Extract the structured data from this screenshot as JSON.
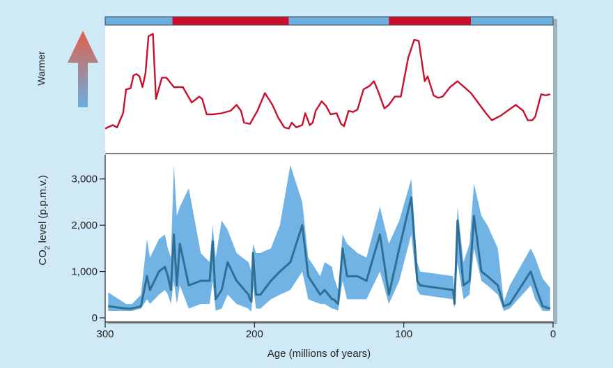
{
  "colors": {
    "background": "#cfe9f6",
    "warm_band": "#c8102e",
    "cool_band": "#6aaedd",
    "temperature_line": "#c8102e",
    "co2_line": "#2f6f96",
    "co2_range": "#71b3e4",
    "arrow_top": "#e0604a",
    "arrow_bottom": "#6aaedd"
  },
  "chart_data": {
    "type": "line",
    "xlabel": "Age (millions of years)",
    "xlim": [
      300,
      0
    ],
    "x_ticks": [
      300,
      200,
      100,
      0
    ],
    "climate_bands": [
      {
        "from": 300,
        "to": 255,
        "state": "cool"
      },
      {
        "from": 255,
        "to": 177,
        "state": "warm"
      },
      {
        "from": 177,
        "to": 110,
        "state": "cool"
      },
      {
        "from": 110,
        "to": 55,
        "state": "warm"
      },
      {
        "from": 55,
        "to": 0,
        "state": "cool"
      }
    ],
    "temperature_panel": {
      "ylabel": "Warmer",
      "ylim": [
        0,
        100
      ],
      "series": [
        {
          "values": [
            [
              300,
              15
            ],
            [
              295,
              18
            ],
            [
              292,
              16
            ],
            [
              288,
              28
            ],
            [
              286,
              48
            ],
            [
              283,
              49
            ],
            [
              281,
              60
            ],
            [
              279,
              61
            ],
            [
              277,
              59
            ],
            [
              275,
              50
            ],
            [
              273,
              62
            ],
            [
              271,
              93
            ],
            [
              268,
              95
            ],
            [
              266,
              40
            ],
            [
              262,
              58
            ],
            [
              259,
              58
            ],
            [
              254,
              50
            ],
            [
              250,
              50
            ],
            [
              248,
              50
            ],
            [
              242,
              37
            ],
            [
              237,
              42
            ],
            [
              235,
              40
            ],
            [
              232,
              27
            ],
            [
              228,
              27
            ],
            [
              222,
              28
            ],
            [
              216,
              30
            ],
            [
              212,
              35
            ],
            [
              209,
              30
            ],
            [
              207,
              20
            ],
            [
              203,
              19
            ],
            [
              198,
              30
            ],
            [
              193,
              45
            ],
            [
              188,
              35
            ],
            [
              184,
              24
            ],
            [
              180,
              16
            ],
            [
              177,
              15
            ],
            [
              175,
              20
            ],
            [
              172,
              16
            ],
            [
              168,
              18
            ],
            [
              166,
              28
            ],
            [
              163,
              18
            ],
            [
              161,
              20
            ],
            [
              159,
              30
            ],
            [
              155,
              38
            ],
            [
              152,
              34
            ],
            [
              149,
              27
            ],
            [
              145,
              28
            ],
            [
              142,
              19
            ],
            [
              140,
              17
            ],
            [
              137,
              30
            ],
            [
              134,
              29
            ],
            [
              131,
              31
            ],
            [
              127,
              48
            ],
            [
              123,
              51
            ],
            [
              120,
              55
            ],
            [
              117,
              46
            ],
            [
              113,
              32
            ],
            [
              110,
              35
            ],
            [
              106,
              42
            ],
            [
              102,
              42
            ],
            [
              97,
              75
            ],
            [
              93,
              90
            ],
            [
              90,
              89
            ],
            [
              86,
              55
            ],
            [
              84,
              59
            ],
            [
              80,
              43
            ],
            [
              77,
              41
            ],
            [
              74,
              42
            ],
            [
              69,
              50
            ],
            [
              64,
              55
            ],
            [
              55,
              45
            ],
            [
              45,
              28
            ],
            [
              41,
              22
            ],
            [
              35,
              26
            ],
            [
              25,
              35
            ],
            [
              20,
              30
            ],
            [
              17,
              22
            ],
            [
              14,
              22
            ],
            [
              12,
              25
            ],
            [
              8,
              44
            ],
            [
              5,
              43
            ],
            [
              2,
              44
            ]
          ]
        }
      ]
    },
    "co2_panel": {
      "ylabel": "CO2 level (p.p.m.v.)",
      "ylim": [
        0,
        3500
      ],
      "y_ticks": [
        0,
        1000,
        2000,
        3000
      ],
      "y_tick_labels": [
        "0",
        "1,000",
        "2,000",
        "3,000"
      ],
      "series": [
        {
          "x": [
            298,
            286,
            282,
            276,
            272,
            270,
            264,
            260,
            258,
            256,
            254,
            252,
            250,
            244,
            236,
            230,
            228,
            226,
            222,
            218,
            212,
            204,
            203,
            202,
            201,
            199,
            196,
            189,
            183,
            176,
            168,
            164,
            156,
            153,
            148,
            147,
            144,
            141,
            138,
            131,
            125,
            116,
            110,
            103,
            95,
            91,
            89,
            67,
            66,
            64,
            60,
            56,
            53,
            48,
            44,
            37,
            33,
            29,
            15,
            12,
            7,
            2
          ],
          "values": [
            250,
            200,
            200,
            250,
            900,
            600,
            1000,
            1100,
            900,
            600,
            1800,
            700,
            1600,
            700,
            800,
            800,
            1650,
            400,
            600,
            1200,
            800,
            500,
            400,
            350,
            1400,
            500,
            500,
            800,
            1000,
            1200,
            2000,
            900,
            500,
            600,
            400,
            400,
            300,
            1500,
            900,
            900,
            800,
            1800,
            500,
            1500,
            2600,
            800,
            700,
            600,
            300,
            2100,
            700,
            800,
            2200,
            1000,
            900,
            700,
            250,
            300,
            1000,
            700,
            250,
            200
          ],
          "low": [
            150,
            150,
            150,
            200,
            400,
            300,
            500,
            600,
            500,
            300,
            800,
            300,
            700,
            200,
            300,
            300,
            800,
            150,
            200,
            500,
            300,
            200,
            150,
            150,
            700,
            200,
            200,
            400,
            500,
            600,
            1000,
            400,
            300,
            300,
            200,
            200,
            150,
            800,
            400,
            400,
            400,
            1000,
            300,
            800,
            1800,
            600,
            500,
            400,
            200,
            1200,
            400,
            500,
            1500,
            800,
            700,
            500,
            150,
            200,
            700,
            400,
            150,
            150
          ],
          "high": [
            550,
            300,
            300,
            500,
            1700,
            1300,
            1700,
            1800,
            1500,
            1300,
            3300,
            2200,
            2400,
            2800,
            1400,
            1200,
            2000,
            1300,
            2100,
            1900,
            1400,
            1200,
            1100,
            1000,
            1600,
            1400,
            1400,
            1500,
            2000,
            3300,
            2500,
            1300,
            900,
            1200,
            1100,
            900,
            600,
            1800,
            1600,
            1400,
            1300,
            2400,
            1600,
            2100,
            3000,
            1200,
            1000,
            900,
            500,
            2400,
            1200,
            1600,
            2900,
            2200,
            2000,
            1500,
            350,
            700,
            1500,
            1300,
            850,
            650
          ]
        }
      ]
    }
  }
}
